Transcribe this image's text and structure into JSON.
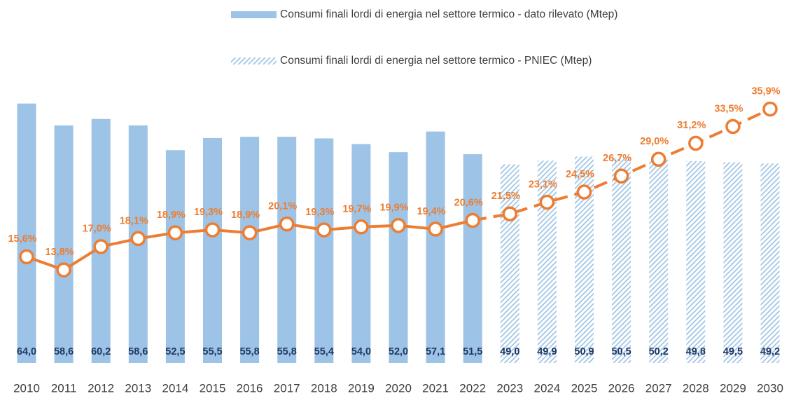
{
  "chart_data": {
    "type": "bar",
    "categories": [
      "2010",
      "2011",
      "2012",
      "2013",
      "2014",
      "2015",
      "2016",
      "2017",
      "2018",
      "2019",
      "2020",
      "2021",
      "2022",
      "2023",
      "2024",
      "2025",
      "2026",
      "2027",
      "2028",
      "2029",
      "2030"
    ],
    "series": [
      {
        "name": "Consumi finali lordi di energia nel settore termico - dato rilevato (Mtep)",
        "color": "#9dc3e6",
        "pattern": "solid",
        "values": [
          64.0,
          58.6,
          60.2,
          58.6,
          52.5,
          55.5,
          55.8,
          55.8,
          55.4,
          54.0,
          52.0,
          57.1,
          51.5,
          null,
          null,
          null,
          null,
          null,
          null,
          null,
          null
        ],
        "value_labels": [
          "64,0",
          "58,6",
          "60,2",
          "58,6",
          "52,5",
          "55,5",
          "55,8",
          "55,8",
          "55,4",
          "54,0",
          "52,0",
          "57,1",
          "51,5",
          null,
          null,
          null,
          null,
          null,
          null,
          null,
          null
        ]
      },
      {
        "name": "Consumi finali lordi di energia nel settore termico - PNIEC (Mtep)",
        "color": "#9dc3e6",
        "pattern": "hatch",
        "values": [
          null,
          null,
          null,
          null,
          null,
          null,
          null,
          null,
          null,
          null,
          null,
          null,
          null,
          49.0,
          49.9,
          50.9,
          50.5,
          50.2,
          49.8,
          49.5,
          49.2
        ],
        "value_labels": [
          null,
          null,
          null,
          null,
          null,
          null,
          null,
          null,
          null,
          null,
          null,
          null,
          null,
          "49,0",
          "49,9",
          "50,9",
          "50,5",
          "50,2",
          "49,8",
          "49,5",
          "49,2"
        ]
      },
      {
        "type": "line",
        "axis": "y2",
        "color": "#ed7d31",
        "values": [
          15.6,
          13.8,
          17.0,
          18.1,
          18.9,
          19.3,
          18.9,
          20.1,
          19.3,
          19.7,
          19.9,
          19.4,
          20.6,
          21.5,
          23.1,
          24.5,
          26.7,
          29.0,
          31.2,
          33.5,
          35.9
        ],
        "value_labels": [
          "15,6%",
          "13,8%",
          "17,0%",
          "18,1%",
          "18,9%",
          "19,3%",
          "18,9%",
          "20,1%",
          "19,3%",
          "19,7%",
          "19,9%",
          "19,4%",
          "20,6%",
          "21,5%",
          "23,1%",
          "24,5%",
          "26,7%",
          "29,0%",
          "31,2%",
          "33,5%",
          "35,9%"
        ]
      }
    ],
    "ylim": [
      0,
      70
    ],
    "y2lim": [
      1,
      40
    ],
    "value_label_color": "#1f3864"
  }
}
